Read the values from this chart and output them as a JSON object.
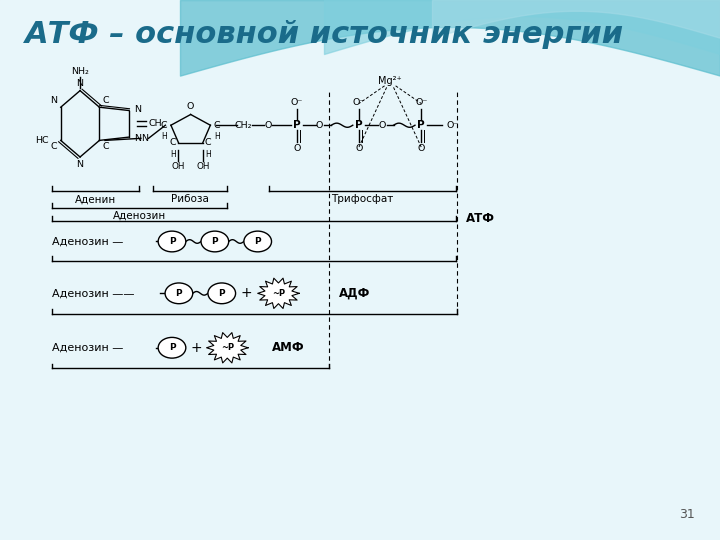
{
  "title": "АТФ – основной источник энергии",
  "title_color": "#1a6b8a",
  "title_fontsize": 22,
  "slide_number": "31",
  "adenine_label": "Аденин",
  "ribose_label": "Рибоза",
  "adenosine_label": "Аденозин",
  "triphosphate_label": "Трифосфат",
  "atf_label": "АТФ",
  "adf_label": "АДФ",
  "amf_label": "АМФ",
  "mg_label": "Mg²⁺",
  "row1_text": "Аденозин —",
  "row2_text": "Аденозин ——",
  "row3_text": "Аденозин —"
}
